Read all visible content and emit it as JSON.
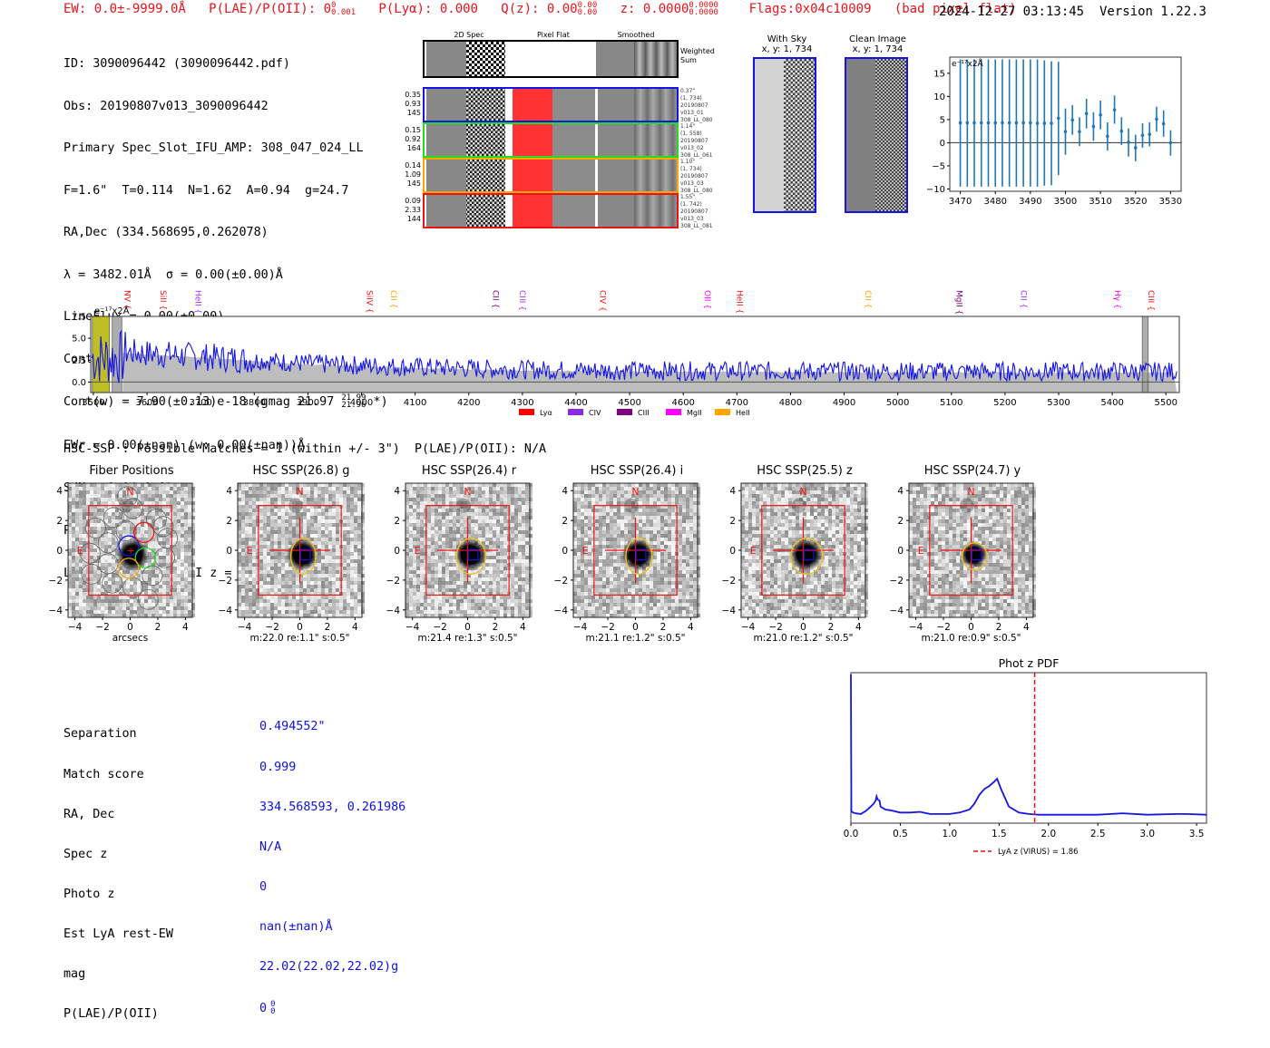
{
  "header": {
    "ew": "EW: 0.0±-9999.0Å",
    "plae_label": "P(LAE)/P(OII): 0",
    "plae_sup": "0",
    "plae_sub": "0.001",
    "plya": "P(Lyα): 0.000",
    "qz_label": "Q(z): 0.00",
    "qz_sup": "0.00",
    "qz_sub": "0.00",
    "z_label": "z: 0.0000",
    "z_sup": "0.0000",
    "z_sub": "0.0000",
    "flags": "Flags:0x04c10009",
    "flag_note": "(bad pixel flat)",
    "timestamp": "2024-12-27 03:13:45",
    "version": "Version 1.22.3",
    "accent_color": "#e8131b"
  },
  "info": {
    "lines": [
      "ID: 3090096442 (3090096442.pdf)",
      "Obs: 20190807v013_3090096442",
      "Primary Spec_Slot_IFU_AMP: 308_047_024_LL",
      "F=1.6\"  T=0.114  N=1.62  A=0.94  g=24.7",
      "RA,Dec (334.568695,0.262078)",
      "λ = 3482.01Å  σ = 0.00(±0.00)Å",
      "LineFlux = 0.00(±0.00)",
      "Cont(n) = 0.00(±0.00)"
    ],
    "contw_prefix": "Cont(w) = 7.90(±0.13)e-18 (gmag 21.97",
    "contw_sup": "21.99",
    "contw_sub": "21.96",
    "contw_suffix": "*)",
    "lines2": [
      "EWr = 0.00(±nan) (w: 0.00(±nan))Å",
      "S/N = 0.0(±0.0)"
    ],
    "plae_label": "P(LAE)/P(OII): 0",
    "plae_sup": "0",
    "plae_sub": "0",
    "lya_line": "LyA z = 1.8643  OII z = N/A"
  },
  "cutouts": {
    "columns": [
      "2D Spec",
      "Pixel Flat",
      "Smoothed"
    ],
    "weighted_sum_label": "Weighted\nSum",
    "fibers": [
      {
        "stats": [
          "0.35",
          "0.93",
          "145"
        ],
        "meta": [
          "0.37\"",
          "(1, 734)",
          "20190807",
          "v013_01",
          "308_LL_080"
        ],
        "color": "#1414e6"
      },
      {
        "stats": [
          "0.15",
          "0.92",
          "164"
        ],
        "meta": [
          "1.14\"",
          "(1, 558)",
          "20190807",
          "v013_02",
          "308_LL_061"
        ],
        "color": "#22dd22"
      },
      {
        "stats": [
          "0.14",
          "1.09",
          "145"
        ],
        "meta": [
          "1.10\"",
          "(1, 734)",
          "20190807",
          "v013_03",
          "308_LL_080"
        ],
        "color": "#ffa500"
      },
      {
        "stats": [
          "0.09",
          "2.33",
          "144"
        ],
        "meta": [
          "1.55\"",
          "(1, 742)",
          "20190807",
          "v013_03",
          "308_LL_081"
        ],
        "color": "#ee1111"
      }
    ]
  },
  "sky_panels": [
    {
      "title": "With Sky",
      "coords": "x, y: 1, 734"
    },
    {
      "title": "Clean Image",
      "coords": "x, y: 1, 734"
    }
  ],
  "chart_data": [
    {
      "id": "zoom-spectrum",
      "type": "scatter",
      "title": "",
      "unit_label": "e⁻¹⁷x2Å",
      "xlabel": "",
      "ylabel": "",
      "xlim": [
        3467,
        3533
      ],
      "ylim": [
        -10.5,
        18.5
      ],
      "xticks": [
        3470,
        3480,
        3490,
        3500,
        3510,
        3520,
        3530
      ],
      "yticks": [
        -10,
        -5,
        0,
        5,
        10,
        15
      ],
      "color": "#1f77b4",
      "points": [
        {
          "x": 3470,
          "y": 4.3,
          "lo": -9.5,
          "hi": 18.0
        },
        {
          "x": 3472,
          "y": 4.3,
          "lo": -9.5,
          "hi": 18.0
        },
        {
          "x": 3474,
          "y": 4.3,
          "lo": -9.5,
          "hi": 18.0
        },
        {
          "x": 3476,
          "y": 4.3,
          "lo": -9.5,
          "hi": 18.0
        },
        {
          "x": 3478,
          "y": 4.3,
          "lo": -9.5,
          "hi": 18.0
        },
        {
          "x": 3480,
          "y": 4.3,
          "lo": -9.5,
          "hi": 18.0
        },
        {
          "x": 3482,
          "y": 4.3,
          "lo": -9.5,
          "hi": 18.0
        },
        {
          "x": 3484,
          "y": 4.3,
          "lo": -9.5,
          "hi": 18.0
        },
        {
          "x": 3486,
          "y": 4.3,
          "lo": -9.5,
          "hi": 18.0
        },
        {
          "x": 3488,
          "y": 4.3,
          "lo": -9.5,
          "hi": 18.0
        },
        {
          "x": 3490,
          "y": 4.3,
          "lo": -9.5,
          "hi": 18.0
        },
        {
          "x": 3492,
          "y": 4.2,
          "lo": -9.5,
          "hi": 18.0
        },
        {
          "x": 3494,
          "y": 4.2,
          "lo": -9.3,
          "hi": 17.8
        },
        {
          "x": 3496,
          "y": 4.2,
          "lo": -9.2,
          "hi": 17.6
        },
        {
          "x": 3498,
          "y": 5.3,
          "lo": -7.0,
          "hi": 17.5
        },
        {
          "x": 3500,
          "y": 2.4,
          "lo": -2.6,
          "hi": 7.4
        },
        {
          "x": 3502,
          "y": 4.9,
          "lo": 1.7,
          "hi": 8.1
        },
        {
          "x": 3504,
          "y": 2.4,
          "lo": -0.7,
          "hi": 5.5
        },
        {
          "x": 3506,
          "y": 6.3,
          "lo": 3.1,
          "hi": 9.5
        },
        {
          "x": 3508,
          "y": 3.5,
          "lo": 0.4,
          "hi": 6.6
        },
        {
          "x": 3510,
          "y": 6.0,
          "lo": 2.9,
          "hi": 9.1
        },
        {
          "x": 3512,
          "y": 1.4,
          "lo": -1.7,
          "hi": 4.4
        },
        {
          "x": 3514,
          "y": 7.1,
          "lo": 4.1,
          "hi": 10.2
        },
        {
          "x": 3516,
          "y": 2.5,
          "lo": -0.5,
          "hi": 5.5
        },
        {
          "x": 3518,
          "y": 0.1,
          "lo": -3.0,
          "hi": 3.1
        },
        {
          "x": 3520,
          "y": -1.1,
          "lo": -4.0,
          "hi": 1.7
        },
        {
          "x": 3522,
          "y": 1.6,
          "lo": -1.1,
          "hi": 4.2
        },
        {
          "x": 3524,
          "y": 1.8,
          "lo": -0.8,
          "hi": 4.4
        },
        {
          "x": 3526,
          "y": 5.1,
          "lo": 2.4,
          "hi": 7.8
        },
        {
          "x": 3528,
          "y": 4.1,
          "lo": 1.3,
          "hi": 7.0
        },
        {
          "x": 3530,
          "y": 0.0,
          "lo": -2.8,
          "hi": 2.7
        }
      ]
    },
    {
      "id": "full-spectrum",
      "type": "line",
      "title": "",
      "unit_label": "e⁻¹⁷x2Å",
      "xlabel": "",
      "ylabel": "",
      "xlim": [
        3495,
        5525
      ],
      "ylim": [
        -1.2,
        7.5
      ],
      "xticks": [
        3500,
        3600,
        3700,
        3800,
        3900,
        4000,
        4100,
        4200,
        4300,
        4400,
        4500,
        4600,
        4700,
        4800,
        4900,
        5000,
        5100,
        5200,
        5300,
        5400,
        5500
      ],
      "yticks": [
        0.0,
        2.5,
        5.0,
        7.5
      ],
      "ytick_labels": [
        "0.0",
        "2.5",
        "5.0",
        "7.5"
      ],
      "series_color": "#1414e6",
      "error_color": "#bdbdbd",
      "continuum_level_approx": [
        {
          "x": 3560,
          "y": 3.3
        },
        {
          "x": 3700,
          "y": 2.8
        },
        {
          "x": 3900,
          "y": 2.0
        },
        {
          "x": 4100,
          "y": 1.6
        },
        {
          "x": 4300,
          "y": 1.3
        },
        {
          "x": 4500,
          "y": 1.2
        },
        {
          "x": 5000,
          "y": 1.1
        },
        {
          "x": 5500,
          "y": 1.1
        }
      ],
      "highlight_regions": [
        {
          "from": 3498,
          "to": 3530,
          "kind": "yellow"
        },
        {
          "from": 3535,
          "to": 3553,
          "kind": "grey-hatched"
        },
        {
          "from": 5456,
          "to": 5467,
          "kind": "grey-hatched"
        }
      ],
      "line_markers": [
        {
          "label": "NV",
          "x": 3553,
          "color": "#ee1111"
        },
        {
          "label": "SiII",
          "x": 3620,
          "color": "#ee1111"
        },
        {
          "label": "HeII",
          "x": 3685,
          "color": "#9b30ff"
        },
        {
          "label": "SiIV",
          "x": 4005,
          "color": "#ee1111"
        },
        {
          "label": "CII",
          "x": 4050,
          "color": "#ffa500"
        },
        {
          "label": "CII",
          "x": 4240,
          "color": "#800080"
        },
        {
          "label": "CIII",
          "x": 4290,
          "color": "#9b30ff"
        },
        {
          "label": "CIV",
          "x": 4440,
          "color": "#ee1111"
        },
        {
          "label": "OII",
          "x": 4635,
          "color": "#ff00ff"
        },
        {
          "label": "HeII",
          "x": 4695,
          "color": "#ee1111"
        },
        {
          "label": "CII",
          "x": 4935,
          "color": "#ffa500"
        },
        {
          "label": "MgII",
          "x": 5105,
          "color": "#800080"
        },
        {
          "label": "CII",
          "x": 5225,
          "color": "#9b30ff"
        },
        {
          "label": "Hγ",
          "x": 5400,
          "color": "#ff00ff"
        },
        {
          "label": "CIII",
          "x": 5462,
          "color": "#ee1111"
        }
      ],
      "legend": [
        {
          "label": "Lyα",
          "color": "#ff0000"
        },
        {
          "label": "CIV",
          "color": "#8a2be2"
        },
        {
          "label": "CIII",
          "color": "#800080"
        },
        {
          "label": "MgII",
          "color": "#ff00ff"
        },
        {
          "label": "HeII",
          "color": "#ffa500"
        }
      ],
      "legend_position": "bottom-center"
    },
    {
      "id": "photz-pdf",
      "type": "line",
      "title": "Phot z PDF",
      "xlabel": "",
      "ylabel": "",
      "xlim": [
        0.0,
        3.6
      ],
      "ylim": [
        0,
        1.0
      ],
      "xticks": [
        0.0,
        0.5,
        1.0,
        1.5,
        2.0,
        2.5,
        3.0,
        3.5
      ],
      "xtick_labels": [
        "0.0",
        "0.5",
        "1.0",
        "1.5",
        "2.0",
        "2.5",
        "3.0",
        "3.5"
      ],
      "series_color": "#1414e6",
      "x": [
        0.0,
        0.005,
        0.02,
        0.05,
        0.1,
        0.15,
        0.2,
        0.23,
        0.25,
        0.26,
        0.27,
        0.29,
        0.3,
        0.35,
        0.4,
        0.5,
        0.6,
        0.7,
        0.8,
        0.9,
        1.0,
        1.1,
        1.2,
        1.25,
        1.3,
        1.35,
        1.4,
        1.45,
        1.48,
        1.52,
        1.6,
        1.7,
        1.8,
        1.9,
        2.0,
        2.2,
        2.5,
        2.75,
        3.0,
        3.3,
        3.4,
        3.6
      ],
      "y": [
        1.0,
        0.07,
        0.06,
        0.055,
        0.05,
        0.07,
        0.1,
        0.12,
        0.14,
        0.17,
        0.15,
        0.14,
        0.1,
        0.08,
        0.075,
        0.06,
        0.06,
        0.065,
        0.05,
        0.05,
        0.05,
        0.06,
        0.08,
        0.12,
        0.18,
        0.22,
        0.24,
        0.27,
        0.29,
        0.22,
        0.1,
        0.06,
        0.05,
        0.045,
        0.045,
        0.045,
        0.045,
        0.055,
        0.045,
        0.05,
        0.05,
        0.045
      ],
      "vline": {
        "x": 1.86,
        "color": "#ee1111",
        "style": "dashed",
        "label": "LyA z (VIRUS) = 1.86"
      },
      "legend_position": "bottom-center"
    }
  ],
  "hsc": {
    "summary": "HSC-SSP : Possible Matches = 1 (within +/- 3\")  P(LAE)/P(OII): N/A",
    "axis_ticks": [
      "4",
      "2",
      "0",
      "−2",
      "−4"
    ],
    "x_ticks": [
      "−4",
      "−2",
      "0",
      "2",
      "4"
    ],
    "north": "N",
    "east": "E",
    "panels": [
      {
        "title": "Fiber Positions",
        "caption": "arcsecs",
        "type": "fibers"
      },
      {
        "title": "HSC SSP(26.8) g",
        "caption": "m:22.0  re:1.1\"  s:0.5\"",
        "type": "band",
        "ellipse_rx": 0.9,
        "ellipse_ry": 1.2
      },
      {
        "title": "HSC SSP(26.4) r",
        "caption": "m:21.4  re:1.3\"  s:0.5\"",
        "type": "band",
        "ellipse_rx": 1.05,
        "ellipse_ry": 1.2
      },
      {
        "title": "HSC SSP(26.4) i",
        "caption": "m:21.1  re:1.2\"  s:0.5\"",
        "type": "band",
        "ellipse_rx": 0.95,
        "ellipse_ry": 1.2
      },
      {
        "title": "HSC SSP(25.5) z",
        "caption": "m:21.0  re:1.2\"  s:0.5\"",
        "type": "band",
        "ellipse_rx": 1.15,
        "ellipse_ry": 1.2
      },
      {
        "title": "HSC SSP(24.7) y",
        "caption": "m:21.0  re:0.9\"  s:0.5\"",
        "type": "band",
        "ellipse_rx": 0.9,
        "ellipse_ry": 0.9
      }
    ]
  },
  "match": {
    "labels": [
      "Separation",
      "Match score",
      "RA, Dec",
      "Spec z",
      "Photo z",
      "Est LyA rest-EW",
      "mag",
      "P(LAE)/P(OII)"
    ],
    "values": [
      "0.494552\"",
      "0.999",
      "334.568593, 0.261986",
      "N/A",
      "0",
      "nan(±nan)Å",
      "22.02(22.02,22.02)g",
      "0"
    ],
    "plae_sup": "0",
    "plae_sub": "0",
    "value_color": "#1010e0"
  }
}
